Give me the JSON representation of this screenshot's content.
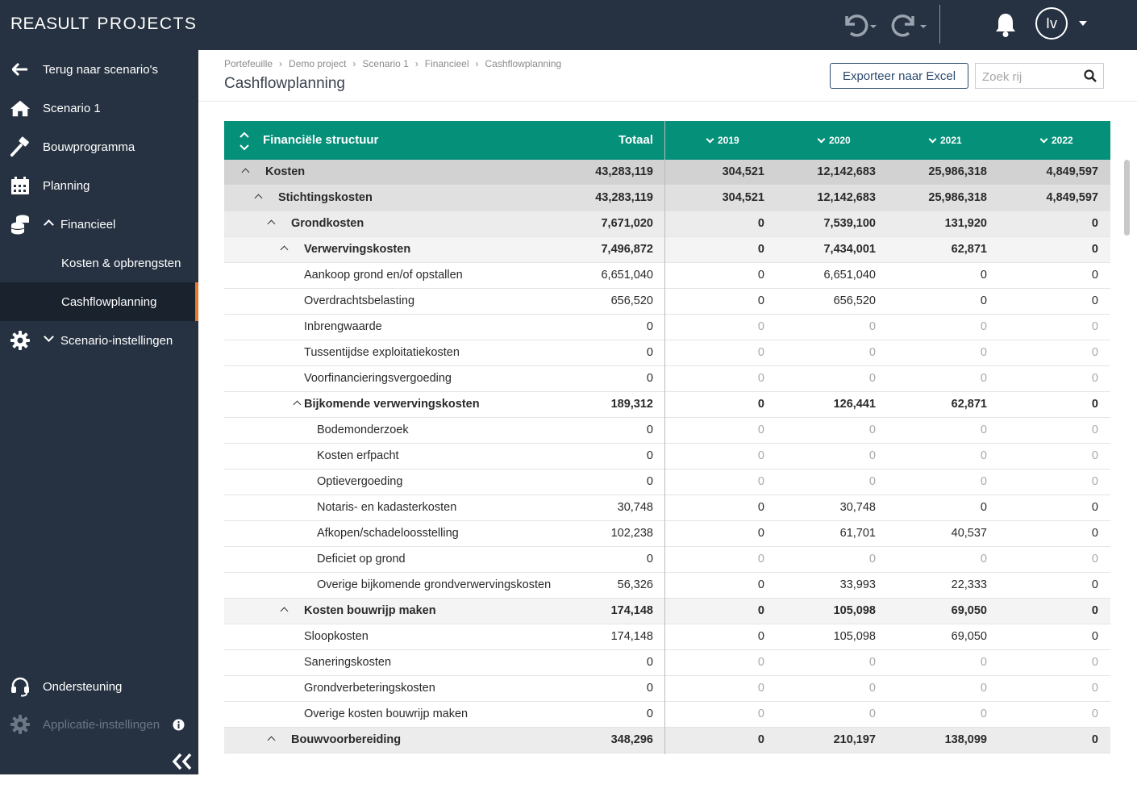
{
  "app": {
    "brand_a": "REASULT",
    "brand_b": "PROJECTS",
    "user_initials": "Iv"
  },
  "sidebar": {
    "back": "Terug naar scenario's",
    "scenario": "Scenario 1",
    "bouwprogramma": "Bouwprogramma",
    "planning": "Planning",
    "financieel": "Financieel",
    "kosten": "Kosten & opbrengsten",
    "cashflow": "Cashflowplanning",
    "scenario_settings": "Scenario-instellingen",
    "support": "Ondersteuning",
    "app_settings": "Applicatie-instellingen"
  },
  "breadcrumb": [
    "Portefeuille",
    "Demo project",
    "Scenario 1",
    "Financieel",
    "Cashflowplanning"
  ],
  "page_title": "Cashflowplanning",
  "export_label": "Exporteer naar Excel",
  "search_placeholder": "Zoek rij",
  "table": {
    "col_struct": "Financiële structuur",
    "col_total": "Totaal",
    "years": [
      "2019",
      "2020",
      "2021",
      "2022"
    ],
    "rows": [
      {
        "level": 0,
        "group": true,
        "name": "Kosten",
        "total": "43,283,119",
        "y": [
          "304,521",
          "12,142,683",
          "25,986,318",
          "4,849,597"
        ]
      },
      {
        "level": 1,
        "group": true,
        "name": "Stichtingskosten",
        "total": "43,283,119",
        "y": [
          "304,521",
          "12,142,683",
          "25,986,318",
          "4,849,597"
        ]
      },
      {
        "level": 2,
        "group": true,
        "name": "Grondkosten",
        "total": "7,671,020",
        "y": [
          "0",
          "7,539,100",
          "131,920",
          "0"
        ]
      },
      {
        "level": 3,
        "group": true,
        "name": "Verwervingskosten",
        "total": "7,496,872",
        "y": [
          "0",
          "7,434,001",
          "62,871",
          "0"
        ]
      },
      {
        "level": 4,
        "group": false,
        "name": "Aankoop grond en/of opstallen",
        "total": "6,651,040",
        "y": [
          "0",
          "6,651,040",
          "0",
          "0"
        ]
      },
      {
        "level": 4,
        "group": false,
        "name": "Overdrachtsbelasting",
        "total": "656,520",
        "y": [
          "0",
          "656,520",
          "0",
          "0"
        ]
      },
      {
        "level": 4,
        "group": false,
        "name": "Inbrengwaarde",
        "total": "0",
        "y": [
          "0",
          "0",
          "0",
          "0"
        ]
      },
      {
        "level": 4,
        "group": false,
        "name": "Tussentijdse exploitatiekosten",
        "total": "0",
        "y": [
          "0",
          "0",
          "0",
          "0"
        ]
      },
      {
        "level": 4,
        "group": false,
        "name": "Voorfinancieringsvergoeding",
        "total": "0",
        "y": [
          "0",
          "0",
          "0",
          "0"
        ]
      },
      {
        "level": 4,
        "group": true,
        "name": "Bijkomende verwervingskosten",
        "total": "189,312",
        "y": [
          "0",
          "126,441",
          "62,871",
          "0"
        ]
      },
      {
        "level": 5,
        "group": false,
        "name": "Bodemonderzoek",
        "total": "0",
        "y": [
          "0",
          "0",
          "0",
          "0"
        ]
      },
      {
        "level": 5,
        "group": false,
        "name": "Kosten erfpacht",
        "total": "0",
        "y": [
          "0",
          "0",
          "0",
          "0"
        ]
      },
      {
        "level": 5,
        "group": false,
        "name": "Optievergoeding",
        "total": "0",
        "y": [
          "0",
          "0",
          "0",
          "0"
        ]
      },
      {
        "level": 5,
        "group": false,
        "name": "Notaris- en kadasterkosten",
        "total": "30,748",
        "y": [
          "0",
          "30,748",
          "0",
          "0"
        ]
      },
      {
        "level": 5,
        "group": false,
        "name": "Afkopen/schadeloosstelling",
        "total": "102,238",
        "y": [
          "0",
          "61,701",
          "40,537",
          "0"
        ]
      },
      {
        "level": 5,
        "group": false,
        "name": "Deficiet op grond",
        "total": "0",
        "y": [
          "0",
          "0",
          "0",
          "0"
        ]
      },
      {
        "level": 5,
        "group": false,
        "name": "Overige bijkomende grondverwervingskosten",
        "total": "56,326",
        "y": [
          "0",
          "33,993",
          "22,333",
          "0"
        ]
      },
      {
        "level": 3,
        "group": true,
        "name": "Kosten bouwrijp maken",
        "total": "174,148",
        "y": [
          "0",
          "105,098",
          "69,050",
          "0"
        ]
      },
      {
        "level": 4,
        "group": false,
        "name": "Sloopkosten",
        "total": "174,148",
        "y": [
          "0",
          "105,098",
          "69,050",
          "0"
        ]
      },
      {
        "level": 4,
        "group": false,
        "name": "Saneringskosten",
        "total": "0",
        "y": [
          "0",
          "0",
          "0",
          "0"
        ]
      },
      {
        "level": 4,
        "group": false,
        "name": "Grondverbeteringskosten",
        "total": "0",
        "y": [
          "0",
          "0",
          "0",
          "0"
        ]
      },
      {
        "level": 4,
        "group": false,
        "name": "Overige kosten bouwrijp maken",
        "total": "0",
        "y": [
          "0",
          "0",
          "0",
          "0"
        ]
      },
      {
        "level": 2,
        "group": true,
        "name": "Bouwvoorbereiding",
        "total": "348,296",
        "y": [
          "0",
          "210,197",
          "138,099",
          "0"
        ]
      }
    ]
  }
}
